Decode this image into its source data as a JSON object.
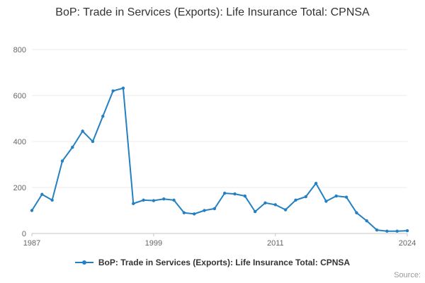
{
  "header": {
    "title": "BoP: Trade in Services (Exports): Life Insurance Total: CPNSA"
  },
  "legend": {
    "label": "BoP: Trade in Services (Exports): Life Insurance Total: CPNSA"
  },
  "footer": {
    "source_label": "Source:"
  },
  "colors": {
    "line": "#2380c3",
    "grid": "#ebebeb",
    "axis": "#c6c6c6",
    "tick_label": "#666666",
    "title_text": "#333333"
  },
  "chart_data": {
    "type": "line",
    "title": "BoP: Trade in Services (Exports): Life Insurance Total: CPNSA",
    "xlabel": "",
    "ylabel": "",
    "ylim": [
      0,
      800
    ],
    "yticks": [
      0,
      200,
      400,
      600,
      800
    ],
    "xticks": [
      1987,
      1999,
      2011,
      2024
    ],
    "grid": true,
    "legend_position": "bottom",
    "series": [
      {
        "name": "BoP: Trade in Services (Exports): Life Insurance Total: CPNSA",
        "color": "#2380c3",
        "x": [
          1987,
          1988,
          1989,
          1990,
          1991,
          1992,
          1993,
          1994,
          1995,
          1996,
          1997,
          1998,
          1999,
          2000,
          2001,
          2002,
          2003,
          2004,
          2005,
          2006,
          2007,
          2008,
          2009,
          2010,
          2011,
          2012,
          2013,
          2014,
          2015,
          2016,
          2017,
          2018,
          2019,
          2020,
          2021,
          2022,
          2023,
          2024
        ],
        "values": [
          100,
          170,
          145,
          315,
          375,
          445,
          400,
          510,
          620,
          632,
          130,
          145,
          143,
          150,
          145,
          90,
          85,
          100,
          108,
          175,
          172,
          163,
          95,
          133,
          125,
          103,
          145,
          160,
          218,
          140,
          163,
          158,
          90,
          55,
          15,
          10,
          10,
          12
        ]
      }
    ]
  }
}
